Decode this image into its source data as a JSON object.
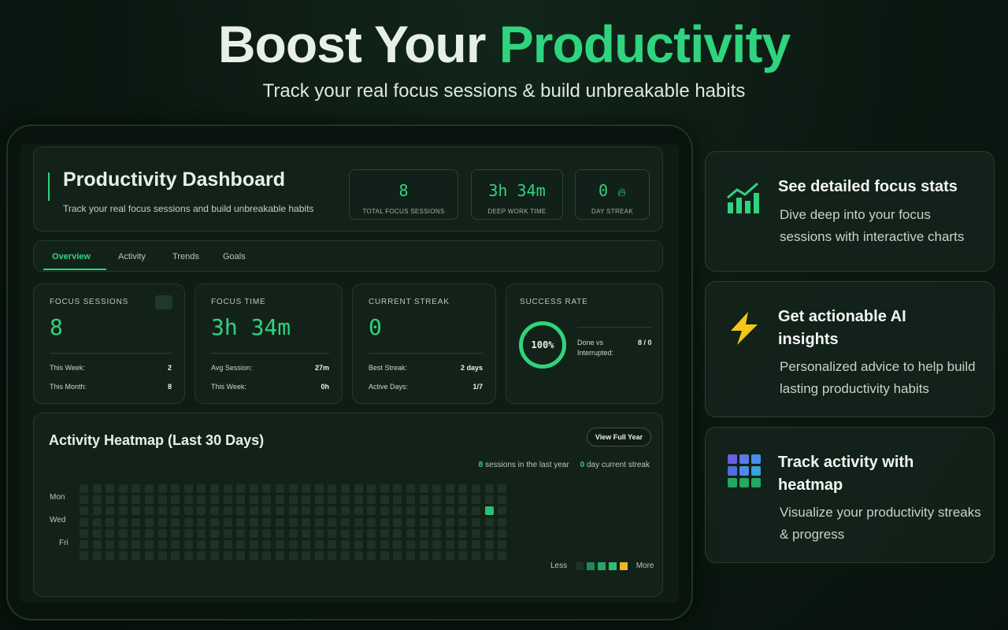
{
  "header": {
    "title_start": "Boost Your",
    "title_highlight": "Productivity",
    "subtitle": "Track your real focus sessions & build unbreakable habits"
  },
  "dashboard": {
    "title": "Productivity Dashboard",
    "subtitle": "Track your real focus sessions and build unbreakable habits",
    "stats": [
      {
        "value": "8",
        "label": "TOTAL FOCUS SESSIONS"
      },
      {
        "value": "3h 34m",
        "label": "DEEP WORK TIME"
      },
      {
        "value": "0",
        "label": "DAY STREAK"
      }
    ],
    "tabs": [
      "Overview",
      "Activity",
      "Trends",
      "Goals"
    ],
    "cards": [
      {
        "label": "FOCUS SESSIONS",
        "value": "8",
        "rows": [
          [
            "This Week:",
            "2"
          ],
          [
            "This Month:",
            "8"
          ]
        ]
      },
      {
        "label": "FOCUS TIME",
        "value": "3h 34m",
        "rows": [
          [
            "Avg Session:",
            "27m"
          ],
          [
            "This Week:",
            "0h"
          ]
        ]
      },
      {
        "label": "CURRENT STREAK",
        "value": "0",
        "rows": [
          [
            "Best Streak:",
            "2 days"
          ],
          [
            "Active Days:",
            "1/7"
          ]
        ]
      }
    ],
    "success": {
      "label": "SUCCESS RATE",
      "value": "100%",
      "detail_label": "Done vs Interrupted:",
      "detail_value": "8 / 0"
    },
    "heatmap": {
      "title": "Activity Heatmap (Last 30 Days)",
      "button": "View Full Year",
      "sessions_count": "8",
      "sessions_text": "sessions in the last year",
      "streak_count": "0",
      "streak_text": "day current streak",
      "days": [
        "Mon",
        "Wed",
        "Fri"
      ],
      "less": "Less",
      "more": "More"
    }
  },
  "features": [
    {
      "title": "See detailed focus stats",
      "description": "Dive deep into your focus sessions with interactive charts"
    },
    {
      "title": "Get actionable AI insights",
      "description": "Personalized advice to help build lasting productivity habits"
    },
    {
      "title": "Track activity with heatmap",
      "description": "Visualize your productivity streaks & progress"
    }
  ]
}
